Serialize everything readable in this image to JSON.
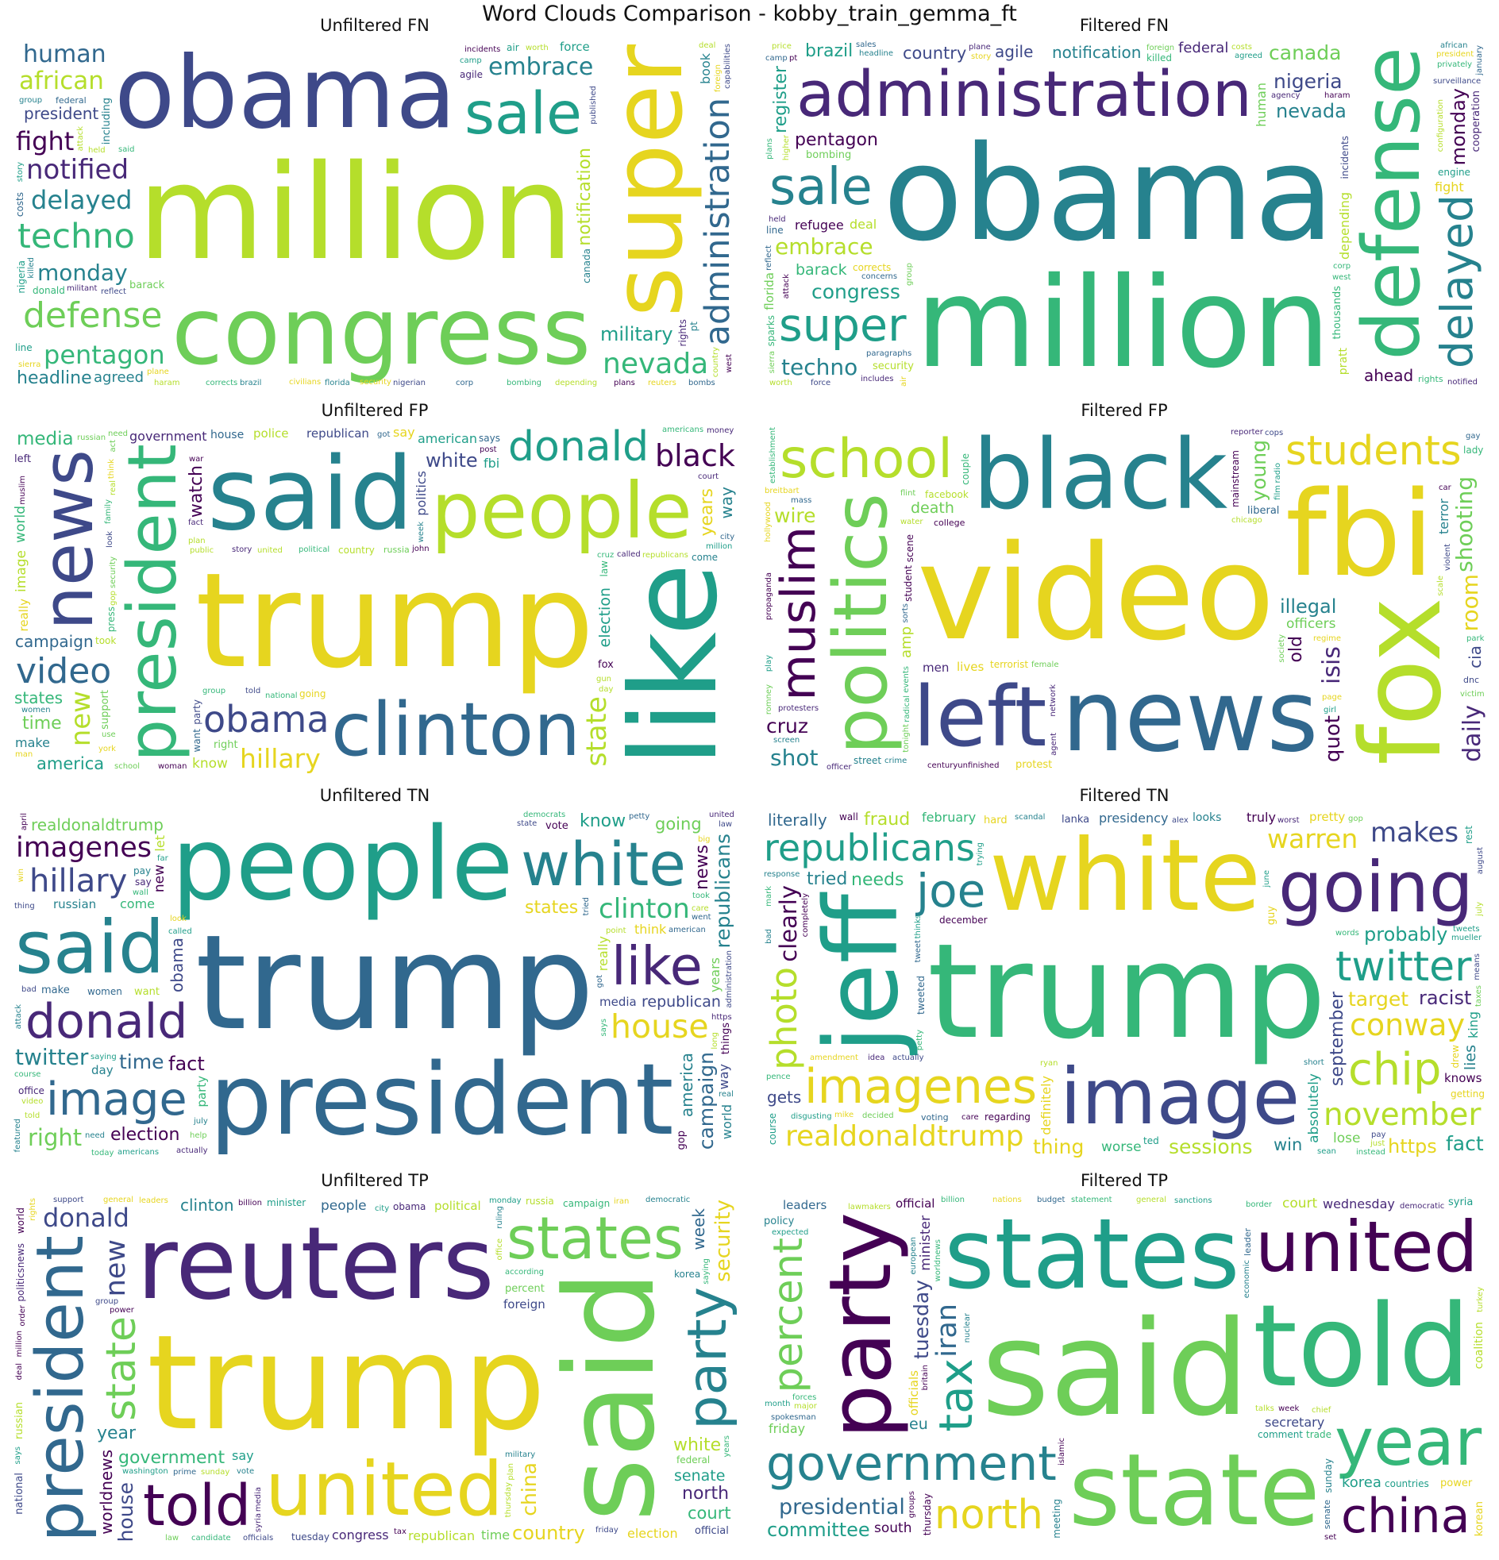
{
  "title": "Word Clouds Comparison - kobby_train_gemma_ft",
  "palette": [
    "#440154",
    "#482878",
    "#3e4989",
    "#31688e",
    "#26828e",
    "#1f9e89",
    "#35b779",
    "#6ece58",
    "#b5de2b",
    "#e6d51f"
  ],
  "panels": [
    {
      "title": "Unfiltered FN",
      "words": [
        "million",
        "obama",
        "super",
        "congress",
        "sale",
        "defense",
        "techno",
        "pentagon",
        "delayed",
        "administration",
        "embrace",
        "nevada",
        "monday",
        "notified",
        "notification",
        "president",
        "african",
        "military",
        "capabilities",
        "including",
        "canada",
        "fight",
        "book",
        "human",
        "agreed",
        "barack",
        "headline",
        "agile",
        "nigeria",
        "foreign",
        "force",
        "brazil",
        "incidents",
        "costs",
        "militant",
        "published",
        "florida",
        "corrects",
        "attack",
        "nigerian",
        "worth",
        "plans",
        "line",
        "federal",
        "agency",
        "donald",
        "bombing",
        "configuration",
        "depending",
        "concerns",
        "civilians",
        "country",
        "corp",
        "rights",
        "haram",
        "trump",
        "sierra",
        "held",
        "cooperation",
        "deal",
        "bombs",
        "killed",
        "engine",
        "includes",
        "january",
        "group",
        "partnership",
        "reflect",
        "ahead",
        "higher",
        "thousands",
        "politicsnews",
        "surveillance",
        "camp",
        "whitney",
        "paragraphs",
        "sales",
        "reconnaissance",
        "security",
        "west",
        "planes",
        "weapons",
        "refugee",
        "story",
        "air",
        "register",
        "price",
        "reuters",
        "production",
        "originally",
        "privately",
        "nigeriawashington",
        "rockets",
        "pratt",
        "second",
        "wants",
        "sparks",
        "plane",
        "said",
        "powered",
        "pt"
      ]
    },
    {
      "title": "Filtered FN",
      "words": [
        "obama",
        "million",
        "administration",
        "defense",
        "super",
        "embrace",
        "delayed",
        "congress",
        "sale",
        "nevada",
        "monday",
        "pentagon",
        "techno",
        "notification",
        "nigeria",
        "canada",
        "barack",
        "register",
        "thousands",
        "country",
        "agile",
        "ahead",
        "florida",
        "federal",
        "brazil",
        "bombing",
        "refugee",
        "fight",
        "corrects",
        "rights",
        "security",
        "agency",
        "depending",
        "engine",
        "incidents",
        "privately",
        "cooperation",
        "notified",
        "foreign",
        "president",
        "surveillance",
        "includes",
        "concerns",
        "configuration",
        "agreed",
        "january",
        "including",
        "headline",
        "capabilities",
        "human",
        "deal",
        "line",
        "sparks",
        "pratt",
        "attack",
        "price",
        "plans",
        "partnership",
        "paragraphs",
        "whitney",
        "production",
        "african",
        "force",
        "higher",
        "camp",
        "worth",
        "killed",
        "plane",
        "haram",
        "group",
        "corp",
        "costs",
        "held",
        "bombs",
        "published",
        "military",
        "air",
        "reconnaissance",
        "weapons",
        "story",
        "reflect",
        "sierra",
        "second",
        "sales",
        "rockets",
        "militant",
        "wants",
        "west",
        "planes",
        "politicsnews",
        "originally",
        "nigerian",
        "nigeriawashington",
        "civilians",
        "powered",
        "pt",
        "book"
      ]
    },
    {
      "title": "Unfiltered FP",
      "words": [
        "trump",
        "said",
        "president",
        "people",
        "like",
        "clinton",
        "obama",
        "video",
        "news",
        "new",
        "hillary",
        "donald",
        "american",
        "campaign",
        "black",
        "white",
        "media",
        "time",
        "years",
        "state",
        "america",
        "states",
        "government",
        "country",
        "police",
        "election",
        "republican",
        "know",
        "right",
        "image",
        "say",
        "way",
        "make",
        "going",
        "told",
        "united",
        "house",
        "political",
        "watch",
        "national",
        "called",
        "americans",
        "fbi",
        "security",
        "republicans",
        "democratic",
        "support",
        "washington",
        "world",
        "story",
        "public",
        "come",
        "took",
        "group",
        "says",
        "russia",
        "russian",
        "according",
        "politics",
        "post",
        "million",
        "need",
        "woman",
        "court",
        "school",
        "year",
        "york",
        "fox",
        "want",
        "report",
        "good",
        "really",
        "day",
        "man",
        "week",
        "great",
        "got",
        "law",
        "vote",
        "party",
        "press",
        "muslim",
        "presidential",
        "twitter",
        "attack",
        "left",
        "office",
        "think",
        "family",
        "department",
        "justice",
        "immigration",
        "illegal",
        "officers",
        "members",
        "children",
        "gun",
        "went",
        "john",
        "case",
        "use",
        "women",
        "used",
        "war",
        "secretary",
        "including",
        "matter",
        "interview",
        "money",
        "conservative",
        "business",
        "students",
        "point",
        "city",
        "actually",
        "cruz",
        "candidate",
        "sanders",
        "history",
        "cnn",
        "better",
        "seen",
        "things",
        "https",
        "today",
        "percent",
        "nation",
        "racist",
        "rights",
        "officials",
        "times",
        "lives",
        "question",
        "look",
        "plan",
        "real",
        "fact",
        "reports",
        "stop",
        "little",
        "saying",
        "act",
        "gop",
        "voters",
        "director",
        "change",
        "reported",
        "death",
        "shooting",
        "supporters",
        "statement"
      ]
    },
    {
      "title": "Filtered FP",
      "words": [
        "video",
        "news",
        "black",
        "fbi",
        "politics",
        "fox",
        "school",
        "left",
        "students",
        "illegal",
        "muslim",
        "officers",
        "shooting",
        "facebook",
        "young",
        "cruz",
        "daily",
        "isis",
        "room",
        "old",
        "quot",
        "wire",
        "death",
        "lives",
        "shot",
        "liberal",
        "centuryunfinished",
        "street",
        "terrorist",
        "men",
        "college",
        "officer",
        "crime",
        "cia",
        "chicago",
        "breitbart",
        "dnc",
        "protesters",
        "mainstream",
        "female",
        "student",
        "network",
        "reporter",
        "protest",
        "water",
        "terror",
        "couple",
        "regime",
        "amp",
        "terrorists",
        "scale",
        "lady",
        "mass",
        "page",
        "scene",
        "victim",
        "radical",
        "violent",
        "gay",
        "veterans",
        "radio",
        "propaganda",
        "establishment",
        "screen",
        "reportedly",
        "wikileaks",
        "county",
        "inside",
        "leftist",
        "cops",
        "shooter",
        "tonight",
        "controversial",
        "foundation",
        "society",
        "play",
        "hollywood",
        "enforcement",
        "incident",
        "passage",
        "events",
        "sorts",
        "campus",
        "progressive",
        "park",
        "agents",
        "brown",
        "car",
        "flint",
        "romney",
        "bengali",
        "racial",
        "boiler",
        "agent",
        "explain",
        "girl",
        "allegedly",
        "film",
        "michelle"
      ]
    },
    {
      "title": "Unfiltered TN",
      "words": [
        "trump",
        "people",
        "president",
        "donald",
        "white",
        "said",
        "image",
        "imagenes",
        "clinton",
        "like",
        "house",
        "hillary",
        "time",
        "campaign",
        "republicans",
        "election",
        "twitter",
        "news",
        "going",
        "america",
        "obama",
        "realdonaldtrump",
        "republican",
        "fact",
        "right",
        "new",
        "states",
        "know",
        "way",
        "think",
        "come",
        "media",
        "party",
        "women",
        "americans",
        "vote",
        "make",
        "say",
        "world",
        "office",
        "russian",
        "actually",
        "democrats",
        "american",
        "things",
        "really",
        "thing",
        "video",
        "years",
        "saying",
        "day",
        "point",
        "look",
        "want",
        "help",
        "today",
        "administration",
        "country",
        "course",
        "state",
        "got",
        "care",
        "united",
        "public",
        "percent",
        "https",
        "great",
        "told",
        "good",
        "says",
        "june",
        "july",
        "let",
        "nominee",
        "law",
        "need",
        "support",
        "called",
        "petty",
        "gop",
        "bad",
        "win",
        "featured",
        "statement",
        "supporters",
        "senate",
        "trying",
        "ryan",
        "instead",
        "wall",
        "attack",
        "million",
        "intelligence",
        "security",
        "january",
        "march",
        "pay",
        "man",
        "federal",
        "asked",
        "watch",
        "russia",
        "person",
        "stop",
        "wants",
        "long",
        "senator",
        "believe",
        "democratic",
        "little",
        "went",
        "words",
        "august",
        "tweet",
        "tried",
        "hard",
        "racist",
        "political",
        "big",
        "reason",
        "national",
        "likely",
        "rights",
        "far",
        "took",
        "clear",
        "using",
        "getting",
        "away",
        "real",
        "case",
        "news",
        "candidate",
        "voters",
        "believe",
        "february",
        "september",
        "december",
        "april"
      ]
    },
    {
      "title": "Filtered TN",
      "words": [
        "trump",
        "white",
        "image",
        "imagenes",
        "republicans",
        "going",
        "realdonaldtrump",
        "twitter",
        "jeff",
        "november",
        "conway",
        "joe",
        "chip",
        "makes",
        "warren",
        "sessions",
        "racist",
        "probably",
        "photo",
        "needs",
        "definitely",
        "thing",
        "target",
        "https",
        "clearly",
        "september",
        "absolutely",
        "literally",
        "fact",
        "knows",
        "lies",
        "fraud",
        "tried",
        "win",
        "gets",
        "february",
        "december",
        "worse",
        "lanka",
        "truly",
        "presidency",
        "course",
        "pretty",
        "looks",
        "lose",
        "tweet",
        "tweeted",
        "decided",
        "scandal",
        "voting",
        "guy",
        "king",
        "june",
        "mark",
        "regarding",
        "amendment",
        "disgusting",
        "pence",
        "completely",
        "words",
        "mueller",
        "rest",
        "sean",
        "worst",
        "response",
        "petty",
        "hard",
        "drew",
        "ted",
        "wall",
        "getting",
        "pay",
        "instead",
        "thought",
        "cannon",
        "gop",
        "short",
        "tweets",
        "featured",
        "exactly",
        "bad",
        "just",
        "spider",
        "actually",
        "taxes",
        "july",
        "alex",
        "idea",
        "mike",
        "care",
        "continues",
        "august",
        "trying",
        "popular",
        "thinks",
        "things",
        "ryan",
        "attacked",
        "means",
        "conservatives",
        "reporter"
      ]
    },
    {
      "title": "Unfiltered TP",
      "words": [
        "trump",
        "reuters",
        "said",
        "president",
        "united",
        "states",
        "told",
        "government",
        "party",
        "state",
        "clinton",
        "donald",
        "country",
        "political",
        "north",
        "white",
        "people",
        "election",
        "security",
        "house",
        "republican",
        "worldnews",
        "senate",
        "year",
        "percent",
        "new",
        "court",
        "obama",
        "china",
        "minister",
        "politicsnews",
        "foreign",
        "military",
        "russian",
        "national",
        "congress",
        "tuesday",
        "federal",
        "campaign",
        "democratic",
        "officials",
        "official",
        "according",
        "time",
        "week",
        "say",
        "media",
        "sunday",
        "monday",
        "friday",
        "wednesday",
        "thursday",
        "leaders",
        "korea",
        "russia",
        "rights",
        "million",
        "statement",
        "group",
        "police",
        "office",
        "says",
        "years",
        "support",
        "saying",
        "billion",
        "administration",
        "defense",
        "candidate",
        "financial",
        "world",
        "power",
        "senior",
        "deal",
        "vote",
        "iran",
        "washington",
        "including",
        "comment",
        "sanctions",
        "parliament",
        "republicans",
        "agency",
        "general",
        "news",
        "department",
        "presidential",
        "european",
        "spokesman",
        "law",
        "syria",
        "month",
        "committee",
        "public",
        "border",
        "plan",
        "policy",
        "union",
        "groups",
        "ministry",
        "ruling",
        "trade",
        "prime",
        "city",
        "war",
        "tax",
        "major",
        "added",
        "called",
        "help",
        "leader",
        "secretary",
        "members",
        "budget",
        "islamic",
        "nuclear",
        "meeting",
        "lawmakers",
        "decision",
        "executive",
        "countries",
        "agreement",
        "intelligence",
        "reporters",
        "director",
        "order",
        "recent",
        "chief",
        "economic",
        "issues",
        "killed"
      ]
    },
    {
      "title": "Filtered TP",
      "words": [
        "said",
        "state",
        "states",
        "government",
        "told",
        "united",
        "party",
        "year",
        "north",
        "percent",
        "china",
        "tax",
        "iran",
        "presidential",
        "secretary",
        "tuesday",
        "committee",
        "officials",
        "minister",
        "court",
        "thursday",
        "friday",
        "wednesday",
        "official",
        "korea",
        "policy",
        "month",
        "countries",
        "nuclear",
        "leaders",
        "leader",
        "statement",
        "south",
        "trade",
        "meeting",
        "week",
        "senate",
        "islamic",
        "worldnews",
        "democratic",
        "lawmakers",
        "general",
        "sanctions",
        "syria",
        "power",
        "britain",
        "spokesman",
        "eu",
        "comment",
        "coalition",
        "nations",
        "border",
        "groups",
        "billion",
        "european",
        "expected",
        "economic",
        "major",
        "legislation",
        "sunday",
        "decision",
        "prime",
        "chief",
        "forces",
        "germany",
        "added",
        "budget",
        "opposition",
        "missile",
        "set",
        "issue",
        "efforts",
        "earlier",
        "crisis",
        "companies",
        "union",
        "executive",
        "international",
        "talks",
        "korean",
        "turkey",
        "region",
        "attacks",
        "agreement",
        "capital",
        "issues",
        "representatives",
        "saudi",
        "chinese",
        "senior",
        "conference",
        "governor",
        "reporters",
        "ministry",
        "iraq",
        "financial",
        "saturday",
        "parliament",
        "ruling",
        "myanmar"
      ]
    }
  ]
}
